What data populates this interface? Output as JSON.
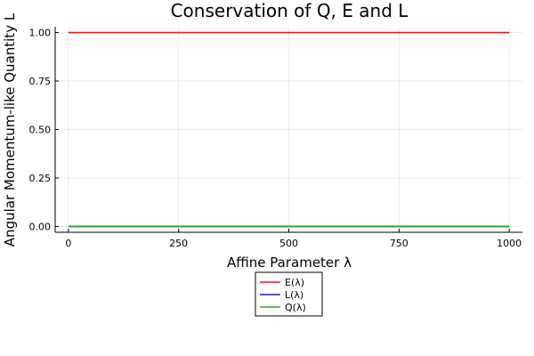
{
  "chart_data": {
    "type": "line",
    "title": "Conservation of Q, E and L",
    "xlabel": "Affine Parameter λ",
    "ylabel": "Angular Momentum-like Quantity L",
    "xlim": [
      -30,
      1030
    ],
    "ylim": [
      -0.03,
      1.03
    ],
    "xticks": [
      0,
      250,
      500,
      750,
      1000
    ],
    "xtick_labels": [
      "0",
      "250",
      "500",
      "750",
      "1000"
    ],
    "yticks": [
      0,
      0.25,
      0.5,
      0.75,
      1.0
    ],
    "ytick_labels": [
      "0.00",
      "0.25",
      "0.50",
      "0.75",
      "1.00"
    ],
    "grid": true,
    "legend_position": "below",
    "series": [
      {
        "name": "E(λ)",
        "color": "#e41a1c",
        "x": [
          0,
          250,
          500,
          750,
          1000
        ],
        "y": [
          1.0,
          1.0,
          1.0,
          1.0,
          1.0
        ]
      },
      {
        "name": "L(λ)",
        "color": "#1f1fb4",
        "x": [
          0,
          250,
          500,
          750,
          1000
        ],
        "y": [
          0.0,
          0.0,
          0.0,
          0.0,
          0.0
        ]
      },
      {
        "name": "Q(λ)",
        "color": "#2ca02c",
        "x": [
          0,
          250,
          500,
          750,
          1000
        ],
        "y": [
          0.0,
          0.0,
          0.0,
          0.0,
          0.0
        ]
      }
    ]
  }
}
